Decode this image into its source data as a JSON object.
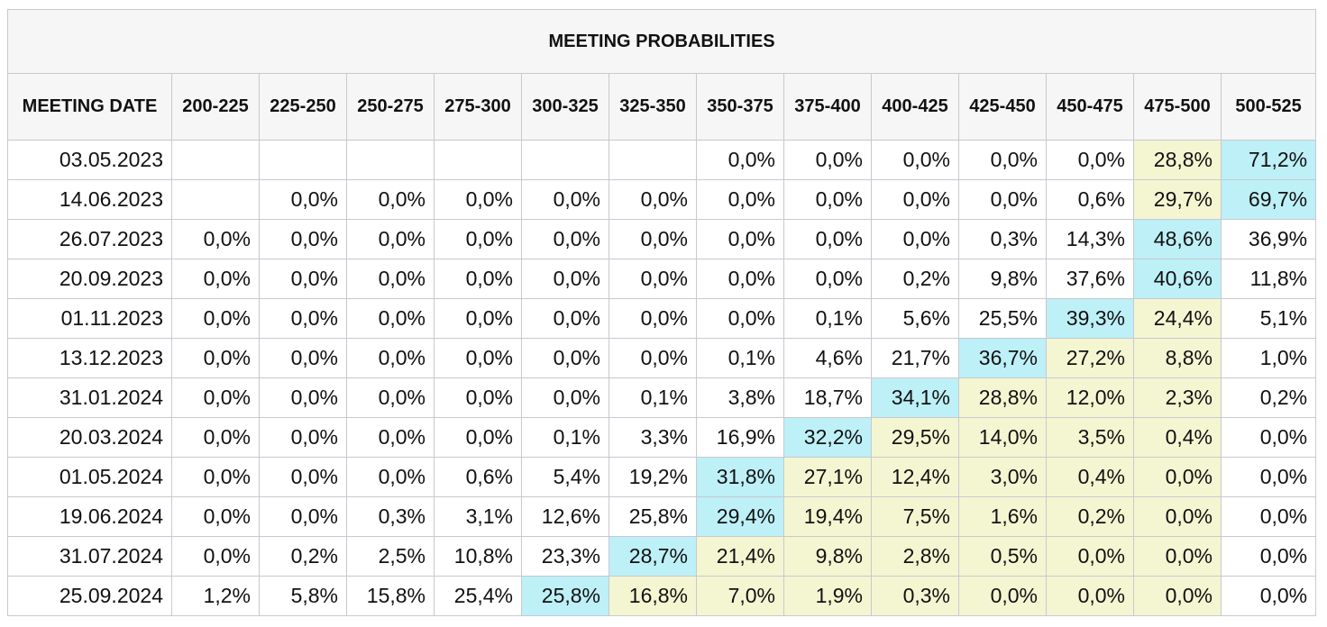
{
  "title": "MEETING PROBABILITIES",
  "date_header": "MEETING DATE",
  "ranges": [
    "200-225",
    "225-250",
    "250-275",
    "275-300",
    "300-325",
    "325-350",
    "350-375",
    "375-400",
    "400-425",
    "425-450",
    "450-475",
    "475-500",
    "500-525"
  ],
  "highlight_colors": {
    "max": "#bdf0f7",
    "near": "#f4f6d2"
  },
  "rows": [
    {
      "date": "03.05.2023",
      "values": [
        "",
        "",
        "",
        "",
        "",
        "",
        "0,0%",
        "0,0%",
        "0,0%",
        "0,0%",
        "0,0%",
        "28,8%",
        "71,2%"
      ],
      "highlight": [
        "",
        "",
        "",
        "",
        "",
        "",
        "",
        "",
        "",
        "",
        "",
        "near",
        "max"
      ]
    },
    {
      "date": "14.06.2023",
      "values": [
        "",
        "0,0%",
        "0,0%",
        "0,0%",
        "0,0%",
        "0,0%",
        "0,0%",
        "0,0%",
        "0,0%",
        "0,0%",
        "0,6%",
        "29,7%",
        "69,7%"
      ],
      "highlight": [
        "",
        "",
        "",
        "",
        "",
        "",
        "",
        "",
        "",
        "",
        "",
        "near",
        "max"
      ]
    },
    {
      "date": "26.07.2023",
      "values": [
        "0,0%",
        "0,0%",
        "0,0%",
        "0,0%",
        "0,0%",
        "0,0%",
        "0,0%",
        "0,0%",
        "0,0%",
        "0,3%",
        "14,3%",
        "48,6%",
        "36,9%"
      ],
      "highlight": [
        "",
        "",
        "",
        "",
        "",
        "",
        "",
        "",
        "",
        "",
        "",
        "max",
        ""
      ]
    },
    {
      "date": "20.09.2023",
      "values": [
        "0,0%",
        "0,0%",
        "0,0%",
        "0,0%",
        "0,0%",
        "0,0%",
        "0,0%",
        "0,0%",
        "0,2%",
        "9,8%",
        "37,6%",
        "40,6%",
        "11,8%"
      ],
      "highlight": [
        "",
        "",
        "",
        "",
        "",
        "",
        "",
        "",
        "",
        "",
        "",
        "max",
        ""
      ]
    },
    {
      "date": "01.11.2023",
      "values": [
        "0,0%",
        "0,0%",
        "0,0%",
        "0,0%",
        "0,0%",
        "0,0%",
        "0,0%",
        "0,1%",
        "5,6%",
        "25,5%",
        "39,3%",
        "24,4%",
        "5,1%"
      ],
      "highlight": [
        "",
        "",
        "",
        "",
        "",
        "",
        "",
        "",
        "",
        "",
        "max",
        "near",
        ""
      ]
    },
    {
      "date": "13.12.2023",
      "values": [
        "0,0%",
        "0,0%",
        "0,0%",
        "0,0%",
        "0,0%",
        "0,0%",
        "0,1%",
        "4,6%",
        "21,7%",
        "36,7%",
        "27,2%",
        "8,8%",
        "1,0%"
      ],
      "highlight": [
        "",
        "",
        "",
        "",
        "",
        "",
        "",
        "",
        "",
        "max",
        "near",
        "near",
        ""
      ]
    },
    {
      "date": "31.01.2024",
      "values": [
        "0,0%",
        "0,0%",
        "0,0%",
        "0,0%",
        "0,0%",
        "0,1%",
        "3,8%",
        "18,7%",
        "34,1%",
        "28,8%",
        "12,0%",
        "2,3%",
        "0,2%"
      ],
      "highlight": [
        "",
        "",
        "",
        "",
        "",
        "",
        "",
        "",
        "max",
        "near",
        "near",
        "near",
        ""
      ]
    },
    {
      "date": "20.03.2024",
      "values": [
        "0,0%",
        "0,0%",
        "0,0%",
        "0,0%",
        "0,1%",
        "3,3%",
        "16,9%",
        "32,2%",
        "29,5%",
        "14,0%",
        "3,5%",
        "0,4%",
        "0,0%"
      ],
      "highlight": [
        "",
        "",
        "",
        "",
        "",
        "",
        "",
        "max",
        "near",
        "near",
        "near",
        "near",
        ""
      ]
    },
    {
      "date": "01.05.2024",
      "values": [
        "0,0%",
        "0,0%",
        "0,0%",
        "0,6%",
        "5,4%",
        "19,2%",
        "31,8%",
        "27,1%",
        "12,4%",
        "3,0%",
        "0,4%",
        "0,0%",
        "0,0%"
      ],
      "highlight": [
        "",
        "",
        "",
        "",
        "",
        "",
        "max",
        "near",
        "near",
        "near",
        "near",
        "near",
        ""
      ]
    },
    {
      "date": "19.06.2024",
      "values": [
        "0,0%",
        "0,0%",
        "0,3%",
        "3,1%",
        "12,6%",
        "25,8%",
        "29,4%",
        "19,4%",
        "7,5%",
        "1,6%",
        "0,2%",
        "0,0%",
        "0,0%"
      ],
      "highlight": [
        "",
        "",
        "",
        "",
        "",
        "",
        "max",
        "near",
        "near",
        "near",
        "near",
        "near",
        ""
      ]
    },
    {
      "date": "31.07.2024",
      "values": [
        "0,0%",
        "0,2%",
        "2,5%",
        "10,8%",
        "23,3%",
        "28,7%",
        "21,4%",
        "9,8%",
        "2,8%",
        "0,5%",
        "0,0%",
        "0,0%",
        "0,0%"
      ],
      "highlight": [
        "",
        "",
        "",
        "",
        "",
        "max",
        "near",
        "near",
        "near",
        "near",
        "near",
        "near",
        ""
      ]
    },
    {
      "date": "25.09.2024",
      "values": [
        "1,2%",
        "5,8%",
        "15,8%",
        "25,4%",
        "25,8%",
        "16,8%",
        "7,0%",
        "1,9%",
        "0,3%",
        "0,0%",
        "0,0%",
        "0,0%",
        "0,0%"
      ],
      "highlight": [
        "",
        "",
        "",
        "",
        "max",
        "near",
        "near",
        "near",
        "near",
        "near",
        "near",
        "near",
        ""
      ]
    }
  ]
}
